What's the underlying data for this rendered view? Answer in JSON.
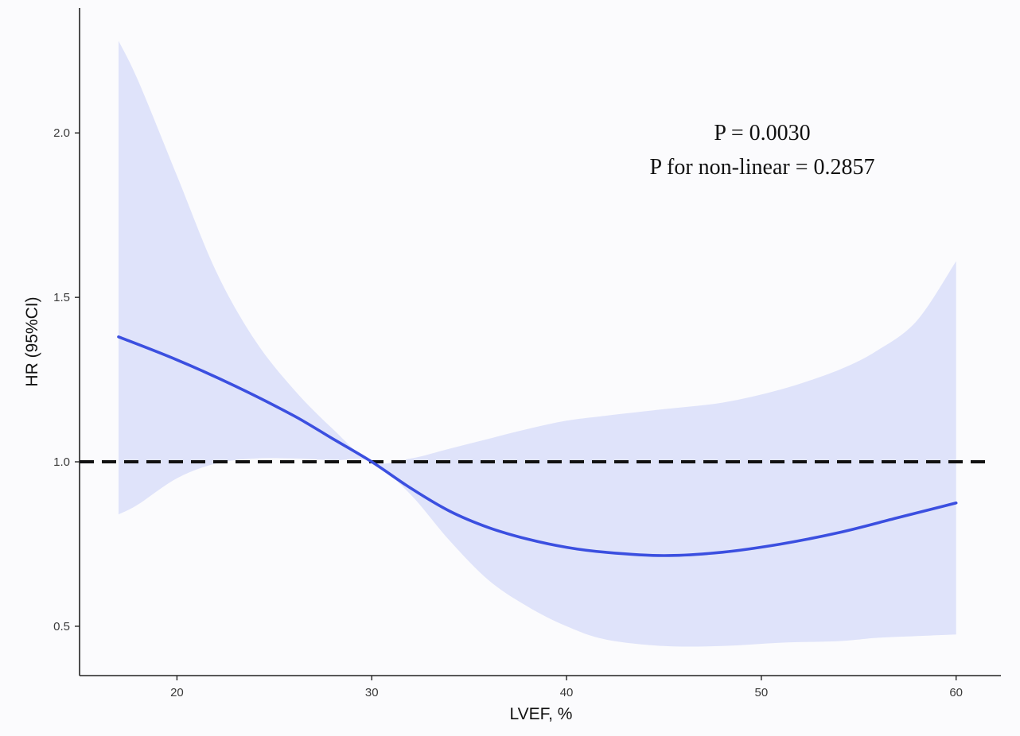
{
  "chart_data": {
    "type": "line",
    "title": "",
    "xlabel": "LVEF, %",
    "ylabel": "HR (95%CI)",
    "xlim": [
      15,
      62.3
    ],
    "ylim": [
      0.35,
      2.38
    ],
    "x_ticks": [
      20,
      30,
      40,
      50,
      60
    ],
    "x_tick_labels": [
      "20",
      "30",
      "40",
      "50",
      "60"
    ],
    "y_ticks": [
      0.5,
      1.0,
      1.5,
      2.0
    ],
    "y_tick_labels": [
      "0.5",
      "1.0",
      "1.5",
      "2.0"
    ],
    "grid": false,
    "reference_line": {
      "y": 1.0,
      "style": "dashed",
      "color": "#111111"
    },
    "series": [
      {
        "name": "HR",
        "color": "#3b4fe0",
        "x": [
          17,
          20,
          23,
          26,
          28,
          30,
          32,
          34,
          36,
          38,
          40,
          42,
          45,
          48,
          51,
          54,
          57,
          60
        ],
        "y": [
          1.38,
          1.31,
          1.23,
          1.14,
          1.07,
          1.0,
          0.92,
          0.85,
          0.8,
          0.765,
          0.74,
          0.725,
          0.715,
          0.725,
          0.75,
          0.785,
          0.83,
          0.875
        ]
      }
    ],
    "confidence_band": {
      "name": "95% CI",
      "color": "#dfe3fa",
      "x": [
        17,
        18,
        20,
        22,
        24,
        26,
        28,
        30,
        32,
        34,
        36,
        38,
        40,
        42,
        45,
        48,
        51,
        54,
        56,
        58,
        60
      ],
      "lower": [
        0.84,
        0.87,
        0.95,
        0.995,
        1.01,
        1.01,
        1.005,
        1.0,
        0.9,
        0.76,
        0.64,
        0.56,
        0.5,
        0.46,
        0.44,
        0.44,
        0.45,
        0.455,
        0.465,
        0.47,
        0.475
      ],
      "upper": [
        2.28,
        2.16,
        1.87,
        1.58,
        1.37,
        1.22,
        1.1,
        1.0,
        1.01,
        1.04,
        1.07,
        1.1,
        1.125,
        1.14,
        1.16,
        1.18,
        1.22,
        1.28,
        1.34,
        1.43,
        1.61
      ]
    },
    "annotations": [
      {
        "text": "P = 0.0030",
        "position": "top-right"
      },
      {
        "text": "P for non-linear = 0.2857",
        "position": "top-right"
      }
    ]
  }
}
